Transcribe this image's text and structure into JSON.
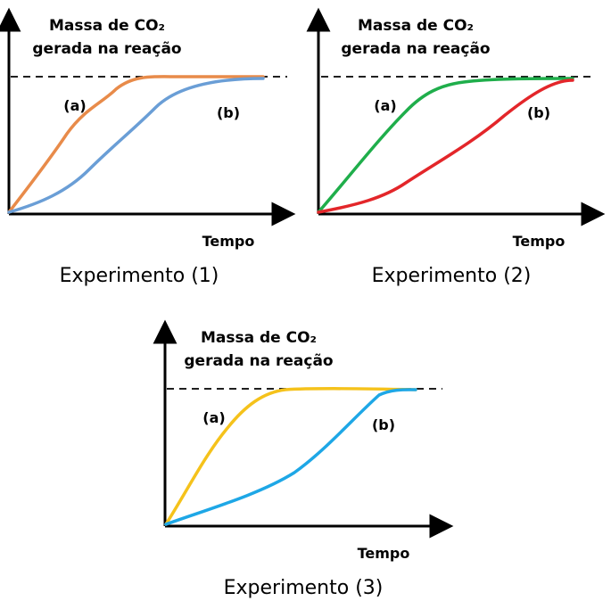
{
  "panels": [
    {
      "id": "experimento-1",
      "caption": "Experimento (1)",
      "ylabel_line1": "Massa de CO₂",
      "ylabel_line2": "gerada na reação",
      "xlabel": "Tempo",
      "curves": [
        {
          "label": "(a)",
          "color": "#E88B4A"
        },
        {
          "label": "(b)",
          "color": "#6A9ED6"
        }
      ]
    },
    {
      "id": "experimento-2",
      "caption": "Experimento (2)",
      "ylabel_line1": "Massa de CO₂",
      "ylabel_line2": "gerada na reação",
      "xlabel": "Tempo",
      "curves": [
        {
          "label": "(a)",
          "color": "#1FAE4B"
        },
        {
          "label": "(b)",
          "color": "#E3262A"
        }
      ]
    },
    {
      "id": "experimento-3",
      "caption": "Experimento (3)",
      "ylabel_line1": "Massa de CO₂",
      "ylabel_line2": "gerada na reação",
      "xlabel": "Tempo",
      "curves": [
        {
          "label": "(a)",
          "color": "#F5C21B"
        },
        {
          "label": "(b)",
          "color": "#1EA7E6"
        }
      ]
    }
  ]
}
